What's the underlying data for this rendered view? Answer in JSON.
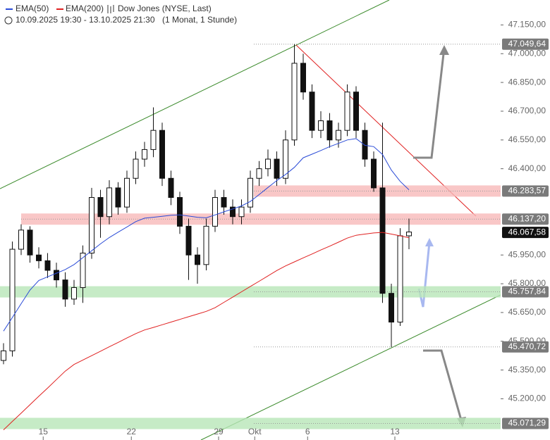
{
  "chart_data": {
    "type": "candlestick",
    "title": "Dow Jones (NYSE, Last)",
    "subtitle": "10.09.2025 19:30 - 13.10.2025 21:30",
    "period": "(1 Monat, 1 Stunde)",
    "open": [
      45400,
      45450,
      45980,
      46080,
      45950,
      45920,
      45870,
      45820,
      45720,
      45780,
      45960,
      46250,
      46150,
      46300,
      46200,
      46350,
      46450,
      46500,
      46600,
      46350,
      46250,
      46100,
      45950,
      45900,
      46100,
      46250,
      46200,
      46150,
      46200,
      46350,
      46400,
      46450,
      46350,
      46550,
      46950,
      46800,
      46600,
      46650,
      46550,
      46600,
      46800,
      46600,
      46450,
      46300,
      45750,
      45600,
      46050
    ],
    "high": [
      45490,
      46020,
      46110,
      46100,
      45990,
      45960,
      45910,
      45860,
      45820,
      46000,
      46300,
      46290,
      46340,
      46330,
      46390,
      46490,
      46540,
      46720,
      46640,
      46390,
      46280,
      46140,
      45990,
      46140,
      46290,
      46290,
      46240,
      46240,
      46390,
      46440,
      46500,
      46490,
      46600,
      47050,
      47000,
      46840,
      46700,
      46690,
      46640,
      46840,
      46830,
      46640,
      46490,
      46640,
      45800,
      46090,
      46140
    ],
    "low": [
      45380,
      45420,
      45950,
      45910,
      45880,
      45830,
      45780,
      45680,
      45690,
      45700,
      45930,
      46040,
      46110,
      46160,
      46170,
      46320,
      46410,
      46460,
      46310,
      46210,
      46060,
      45820,
      45800,
      45870,
      46070,
      46160,
      46110,
      46110,
      46170,
      46310,
      46360,
      46310,
      46320,
      46520,
      46760,
      46560,
      46560,
      46510,
      46510,
      46570,
      46560,
      46410,
      46280,
      45700,
      45470,
      45580,
      45980
    ],
    "close": [
      45450,
      45980,
      46080,
      45950,
      45920,
      45870,
      45820,
      45720,
      45780,
      45960,
      46250,
      46150,
      46300,
      46200,
      46350,
      46450,
      46500,
      46600,
      46350,
      46250,
      46100,
      45950,
      45900,
      46100,
      46250,
      46200,
      46150,
      46200,
      46350,
      46400,
      46450,
      46350,
      46550,
      46950,
      46800,
      46600,
      46650,
      46550,
      46600,
      46800,
      46600,
      46450,
      46300,
      45750,
      45600,
      46050,
      46070
    ],
    "series": [
      {
        "name": "EMA(50)",
        "color": "#2a4bd7",
        "values": [
          45553,
          45624,
          45696,
          45767,
          45817,
          45836,
          45855,
          45874,
          45900,
          45936,
          45972,
          46008,
          46041,
          46069,
          46096,
          46124,
          46142,
          46147,
          46152,
          46157,
          46159,
          46153,
          46147,
          46144,
          46159,
          46175,
          46190,
          46206,
          46229,
          46265,
          46302,
          46338,
          46370,
          46407,
          46457,
          46476,
          46495,
          46515,
          46532,
          46550,
          46557,
          46522,
          46515,
          46474,
          46393,
          46334,
          46290
        ]
      },
      {
        "name": "EMA(200)",
        "color": "#e02020",
        "values": [
          45038,
          45082,
          45125,
          45169,
          45213,
          45256,
          45300,
          45344,
          45379,
          45402,
          45425,
          45448,
          45471,
          45494,
          45517,
          45540,
          45559,
          45572,
          45586,
          45600,
          45614,
          45628,
          45642,
          45656,
          45675,
          45703,
          45730,
          45758,
          45786,
          45813,
          45841,
          45869,
          45893,
          45914,
          45935,
          45955,
          45976,
          45996,
          46017,
          46038,
          46053,
          46059,
          46065,
          46068,
          46059,
          46050,
          46040
        ]
      }
    ],
    "xlim": [
      -0.4,
      56.4
    ],
    "xticks": [
      {
        "value": 4.5,
        "label": "15"
      },
      {
        "value": 14.5,
        "label": "22"
      },
      {
        "value": 24.4,
        "label": "29"
      },
      {
        "value": 28.5,
        "label": "Okt"
      },
      {
        "value": 34.5,
        "label": "6"
      },
      {
        "value": 44.4,
        "label": "13"
      }
    ],
    "ylim": [
      44985,
      47280
    ],
    "yticks": [
      {
        "value": 45200,
        "label": "45.200,00"
      },
      {
        "value": 45350,
        "label": "45.350,00"
      },
      {
        "value": 45500,
        "label": "45.500,00"
      },
      {
        "value": 45650,
        "label": "45.650,00"
      },
      {
        "value": 45800,
        "label": "45.800,00"
      },
      {
        "value": 45950,
        "label": "45.950,00"
      },
      {
        "value": 46400,
        "label": "46.400,00"
      },
      {
        "value": 46550,
        "label": "46.550,00"
      },
      {
        "value": 46700,
        "label": "46.700,00"
      },
      {
        "value": 46850,
        "label": "46.850,00"
      },
      {
        "value": 47000,
        "label": "47.000,00"
      },
      {
        "value": 47150,
        "label": "47.150,00"
      }
    ],
    "levels": [
      {
        "value": 47049.64,
        "label": "47.049,64"
      },
      {
        "value": 46283.57,
        "label": "46.283,57",
        "zone_color": "#f7b9b9"
      },
      {
        "value": 46137.2,
        "label": "46.137,20",
        "zone_color": "#f7b9b9"
      },
      {
        "value": 45757.84,
        "label": "45.757,84",
        "zone_color": "#b8e6b8"
      },
      {
        "value": 45470.72,
        "label": "45.470,72"
      },
      {
        "value": 45071.29,
        "label": "45.071,29",
        "zone_color": "#b8e6b8"
      }
    ],
    "last": {
      "value": 46067.58,
      "label": "46.067,58"
    }
  }
}
